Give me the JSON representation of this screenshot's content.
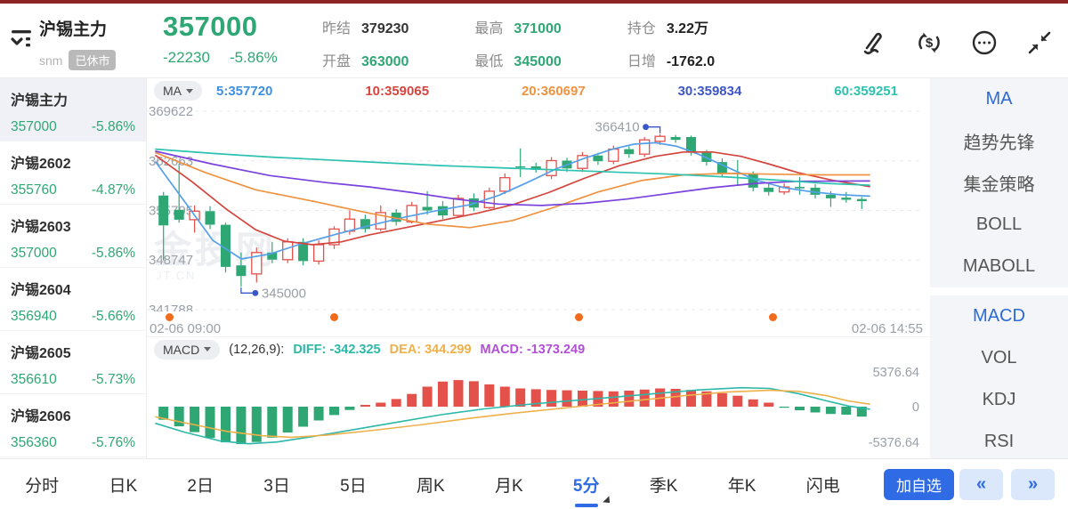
{
  "colors": {
    "up": "#e4504a",
    "down": "#2fa774",
    "accent": "#2e6be5",
    "axis_gray": "#9aa0a8",
    "marker_blue": "#3a57c9",
    "dot_orange": "#f26a1b"
  },
  "header": {
    "name": "沪锡主力",
    "code": "snm",
    "status_badge": "已休市",
    "price": "357000",
    "change": "-22230",
    "change_pct": "-5.86%",
    "stats": [
      {
        "label": "昨结",
        "value": "379230",
        "color": "#333333"
      },
      {
        "label": "开盘",
        "value": "363000",
        "color": "#2fa774"
      },
      {
        "label": "最高",
        "value": "371000",
        "color": "#2fa774"
      },
      {
        "label": "最低",
        "value": "345000",
        "color": "#2fa774"
      },
      {
        "label": "持仓",
        "value": "3.22万",
        "color": "#222222"
      },
      {
        "label": "日增",
        "value": "-1762.0",
        "color": "#222222"
      }
    ]
  },
  "watchlist": [
    {
      "name": "沪锡主力",
      "price": "357000",
      "pct": "-5.86%",
      "active": true
    },
    {
      "name": "沪锡2602",
      "price": "355760",
      "pct": "-4.87%",
      "active": false
    },
    {
      "name": "沪锡2603",
      "price": "357000",
      "pct": "-5.86%",
      "active": false
    },
    {
      "name": "沪锡2604",
      "price": "356940",
      "pct": "-5.66%",
      "active": false
    },
    {
      "name": "沪锡2605",
      "price": "356610",
      "pct": "-5.73%",
      "active": false
    },
    {
      "name": "沪锡2606",
      "price": "356360",
      "pct": "-5.76%",
      "active": false
    }
  ],
  "ma_bar": {
    "button": "MA",
    "values": [
      {
        "text": "5:357720",
        "color": "#3f8fe0"
      },
      {
        "text": "10:359065",
        "color": "#d4453e"
      },
      {
        "text": "20:360697",
        "color": "#ef9241"
      },
      {
        "text": "30:359834",
        "color": "#3d56c5"
      },
      {
        "text": "60:359251",
        "color": "#2cc2b0"
      }
    ]
  },
  "macd_bar": {
    "button": "MACD",
    "params": "(12,26,9):",
    "values": [
      {
        "text": "DIFF: -342.325",
        "color": "#2cb8a8"
      },
      {
        "text": "DEA: 344.299",
        "color": "#eeb04a"
      },
      {
        "text": "MACD: -1373.249",
        "color": "#b14fd6"
      }
    ]
  },
  "watermark": {
    "brand": "金投网",
    "domain": "JT.CN"
  },
  "time_axis": {
    "start": "02-06 09:00",
    "end": "02-06 14:55",
    "dot_positions": [
      25,
      210,
      485,
      703
    ]
  },
  "right_panel": {
    "groups": [
      {
        "items": [
          "MA",
          "趋势先锋",
          "集金策略",
          "BOLL",
          "MABOLL"
        ],
        "active": "MA"
      },
      {
        "items": [
          "MACD",
          "VOL",
          "KDJ",
          "RSI"
        ],
        "active": "MACD"
      }
    ]
  },
  "bottom_bar": {
    "tabs": [
      "分时",
      "日K",
      "2日",
      "3日",
      "5日",
      "周K",
      "月K",
      "5分",
      "季K",
      "年K",
      "闪电"
    ],
    "active": "5分",
    "add_button": "加自选",
    "pager_prev": "«",
    "pager_next": "»"
  },
  "chart_data": {
    "type": "candlestick+macd",
    "main": {
      "price_top": 369622,
      "price_bottom": 341788,
      "axis_labels": [
        369622,
        362663,
        355705,
        348747,
        341788
      ],
      "candles": [
        [
          357800,
          353600,
          358300,
          348700
        ],
        [
          355800,
          354400,
          362300,
          354000
        ],
        [
          354400,
          355600,
          356400,
          352600
        ],
        [
          355600,
          353700,
          356300,
          353100
        ],
        [
          353700,
          347800,
          354000,
          347000
        ],
        [
          348000,
          346500,
          349800,
          345000
        ],
        [
          346800,
          349800,
          350500,
          345600
        ],
        [
          349800,
          348800,
          351300,
          348300
        ],
        [
          348800,
          351300,
          351800,
          348300
        ],
        [
          351300,
          348600,
          351800,
          348000
        ],
        [
          348600,
          350900,
          351500,
          348100
        ],
        [
          350900,
          353100,
          353500,
          350300
        ],
        [
          352800,
          354500,
          355700,
          352300
        ],
        [
          354500,
          353100,
          355100,
          352600
        ],
        [
          353100,
          355400,
          356400,
          352800
        ],
        [
          355400,
          354100,
          355900,
          353600
        ],
        [
          354100,
          356400,
          356900,
          353900
        ],
        [
          356200,
          355700,
          358400,
          355100
        ],
        [
          356300,
          355000,
          357000,
          354500
        ],
        [
          355000,
          357400,
          357900,
          354800
        ],
        [
          357400,
          356100,
          358100,
          355600
        ],
        [
          356100,
          358400,
          358900,
          355900
        ],
        [
          358400,
          360300,
          360900,
          358000
        ],
        [
          361900,
          361850,
          364400,
          360400
        ],
        [
          361900,
          361400,
          362400,
          361000
        ],
        [
          360600,
          362700,
          363200,
          360100
        ],
        [
          362700,
          361600,
          363100,
          361100
        ],
        [
          361600,
          363400,
          363900,
          361100
        ],
        [
          363400,
          362600,
          363800,
          362100
        ],
        [
          362600,
          364300,
          364800,
          362200
        ],
        [
          364300,
          363600,
          364700,
          363100
        ],
        [
          363600,
          365600,
          366000,
          363200
        ],
        [
          365400,
          366100,
          366410,
          364900
        ],
        [
          366000,
          365600,
          366300,
          365200
        ],
        [
          366000,
          363800,
          366200,
          363400
        ],
        [
          363800,
          362500,
          364200,
          362000
        ],
        [
          362500,
          360900,
          363000,
          360400
        ],
        [
          361000,
          360800,
          362800,
          359300
        ],
        [
          360800,
          358900,
          361200,
          358400
        ],
        [
          358900,
          358300,
          359400,
          357800
        ],
        [
          358300,
          359000,
          359500,
          357900
        ],
        [
          359000,
          358800,
          360400,
          357900
        ],
        [
          358900,
          357900,
          359400,
          357400
        ],
        [
          357900,
          357400,
          358400,
          356200
        ],
        [
          357500,
          357200,
          358300,
          356800
        ],
        [
          357300,
          357000,
          357600,
          355900
        ]
      ],
      "ma_lines": [
        {
          "name": "MA5",
          "color": "#55a0e8",
          "points": [
            [
              0,
              362500
            ],
            [
              0.04,
              357000
            ],
            [
              0.08,
              351500
            ],
            [
              0.12,
              348900
            ],
            [
              0.16,
              349600
            ],
            [
              0.2,
              350900
            ],
            [
              0.25,
              352300
            ],
            [
              0.3,
              353600
            ],
            [
              0.35,
              354800
            ],
            [
              0.4,
              355800
            ],
            [
              0.44,
              356500
            ],
            [
              0.48,
              357800
            ],
            [
              0.52,
              359600
            ],
            [
              0.56,
              361500
            ],
            [
              0.6,
              363000
            ],
            [
              0.64,
              364300
            ],
            [
              0.67,
              365000
            ],
            [
              0.7,
              365200
            ],
            [
              0.73,
              364700
            ],
            [
              0.76,
              363600
            ],
            [
              0.8,
              361800
            ],
            [
              0.84,
              360000
            ],
            [
              0.88,
              358900
            ],
            [
              0.92,
              358300
            ],
            [
              0.96,
              357900
            ],
            [
              1,
              357720
            ]
          ]
        },
        {
          "name": "MA10",
          "color": "#d4453e",
          "points": [
            [
              0,
              363400
            ],
            [
              0.05,
              359800
            ],
            [
              0.1,
              355800
            ],
            [
              0.14,
              353000
            ],
            [
              0.18,
              351400
            ],
            [
              0.22,
              350900
            ],
            [
              0.26,
              351300
            ],
            [
              0.3,
              352300
            ],
            [
              0.35,
              353300
            ],
            [
              0.4,
              354300
            ],
            [
              0.45,
              355300
            ],
            [
              0.5,
              356500
            ],
            [
              0.55,
              358200
            ],
            [
              0.6,
              360200
            ],
            [
              0.65,
              362000
            ],
            [
              0.7,
              363300
            ],
            [
              0.74,
              363900
            ],
            [
              0.78,
              363900
            ],
            [
              0.82,
              363300
            ],
            [
              0.86,
              362200
            ],
            [
              0.9,
              361000
            ],
            [
              0.95,
              359900
            ],
            [
              1,
              359065
            ]
          ]
        },
        {
          "name": "MA20",
          "color": "#ef9241",
          "points": [
            [
              0,
              363800
            ],
            [
              0.07,
              361000
            ],
            [
              0.14,
              358600
            ],
            [
              0.22,
              357000
            ],
            [
              0.3,
              355300
            ],
            [
              0.38,
              353800
            ],
            [
              0.44,
              353300
            ],
            [
              0.5,
              354300
            ],
            [
              0.56,
              356200
            ],
            [
              0.62,
              358300
            ],
            [
              0.68,
              359900
            ],
            [
              0.74,
              360700
            ],
            [
              0.8,
              360900
            ],
            [
              0.86,
              360800
            ],
            [
              0.93,
              360700
            ],
            [
              1,
              360697
            ]
          ]
        },
        {
          "name": "MA30",
          "color": "#7a42dd",
          "points": [
            [
              0,
              364000
            ],
            [
              0.08,
              362200
            ],
            [
              0.16,
              360600
            ],
            [
              0.24,
              359600
            ],
            [
              0.3,
              359000
            ],
            [
              0.36,
              358200
            ],
            [
              0.42,
              357300
            ],
            [
              0.48,
              356600
            ],
            [
              0.54,
              356400
            ],
            [
              0.6,
              356700
            ],
            [
              0.66,
              357300
            ],
            [
              0.72,
              358100
            ],
            [
              0.78,
              358900
            ],
            [
              0.84,
              359500
            ],
            [
              0.9,
              359800
            ],
            [
              1,
              359834
            ]
          ]
        },
        {
          "name": "MA60",
          "color": "#2cc2b0",
          "points": [
            [
              0,
              364300
            ],
            [
              0.08,
              363700
            ],
            [
              0.16,
              363200
            ],
            [
              0.24,
              362800
            ],
            [
              0.32,
              362400
            ],
            [
              0.4,
              362000
            ],
            [
              0.48,
              361700
            ],
            [
              0.56,
              361400
            ],
            [
              0.64,
              361100
            ],
            [
              0.72,
              360800
            ],
            [
              0.8,
              360400
            ],
            [
              0.88,
              359900
            ],
            [
              0.94,
              359500
            ],
            [
              1,
              359251
            ]
          ]
        }
      ],
      "markers": [
        {
          "type": "high",
          "index": 32,
          "value": 366410
        },
        {
          "type": "low",
          "index": 5,
          "value": 345000
        }
      ]
    },
    "macd": {
      "scale_max": 5376.64,
      "axis_labels": [
        "5376.64",
        "0",
        "-5376.64"
      ],
      "histogram": [
        -1800,
        -2700,
        -3500,
        -4300,
        -4900,
        -5150,
        -4850,
        -4250,
        -3550,
        -2750,
        -1900,
        -1150,
        -450,
        250,
        550,
        1050,
        1750,
        2750,
        3450,
        3650,
        3500,
        3050,
        2750,
        2500,
        2400,
        2300,
        2250,
        2200,
        2150,
        2100,
        2200,
        2350,
        2500,
        2450,
        2300,
        2100,
        1850,
        1500,
        1000,
        550,
        -150,
        -500,
        -800,
        -1000,
        -1100,
        -1373
      ],
      "diff": {
        "color": "#2cb8a8",
        "points": [
          [
            0,
            -2300
          ],
          [
            0.04,
            -3500
          ],
          [
            0.09,
            -4700
          ],
          [
            0.13,
            -5100
          ],
          [
            0.17,
            -4850
          ],
          [
            0.22,
            -4100
          ],
          [
            0.28,
            -3100
          ],
          [
            0.34,
            -2100
          ],
          [
            0.4,
            -1100
          ],
          [
            0.46,
            -300
          ],
          [
            0.52,
            300
          ],
          [
            0.58,
            800
          ],
          [
            0.64,
            1300
          ],
          [
            0.7,
            1800
          ],
          [
            0.76,
            2300
          ],
          [
            0.82,
            2600
          ],
          [
            0.86,
            2500
          ],
          [
            0.9,
            1800
          ],
          [
            0.94,
            800
          ],
          [
            0.97,
            100
          ],
          [
            1,
            -342
          ]
        ]
      },
      "dea": {
        "color": "#eeb04a",
        "points": [
          [
            0,
            -1400
          ],
          [
            0.05,
            -2400
          ],
          [
            0.1,
            -3400
          ],
          [
            0.15,
            -4000
          ],
          [
            0.19,
            -4200
          ],
          [
            0.24,
            -3900
          ],
          [
            0.3,
            -3300
          ],
          [
            0.37,
            -2500
          ],
          [
            0.44,
            -1600
          ],
          [
            0.5,
            -900
          ],
          [
            0.56,
            -300
          ],
          [
            0.62,
            300
          ],
          [
            0.68,
            900
          ],
          [
            0.74,
            1500
          ],
          [
            0.8,
            2000
          ],
          [
            0.86,
            2250
          ],
          [
            0.9,
            2100
          ],
          [
            0.94,
            1500
          ],
          [
            0.97,
            800
          ],
          [
            1,
            344
          ]
        ]
      }
    }
  }
}
